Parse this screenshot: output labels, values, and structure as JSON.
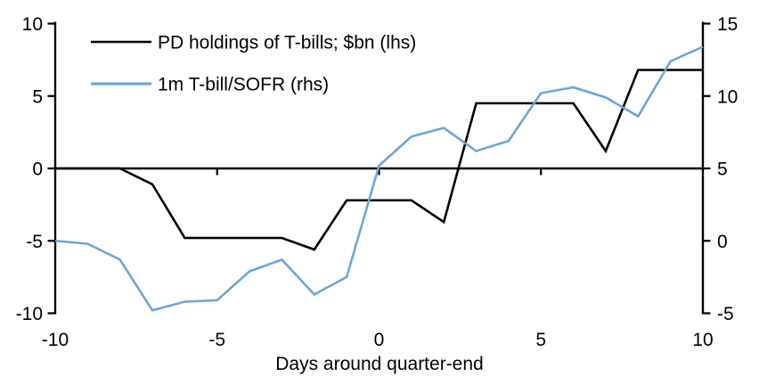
{
  "chart_data": {
    "type": "line",
    "title": "",
    "xlabel": "Days around quarter-end",
    "grid": false,
    "legend_position": "top-left",
    "x_axis": {
      "min": -10,
      "max": 10,
      "tick_values": [
        -10,
        -5,
        0,
        5,
        10
      ]
    },
    "left_axis": {
      "min": -10,
      "max": 10,
      "tick_values": [
        10,
        5,
        0,
        -5,
        -10
      ]
    },
    "right_axis": {
      "min": -5,
      "max": 15,
      "tick_values": [
        15,
        10,
        5,
        0,
        -5
      ]
    },
    "x": [
      -10,
      -9,
      -8,
      -7,
      -6,
      -5,
      -4,
      -3,
      -2,
      -1,
      0,
      1,
      2,
      3,
      4,
      5,
      6,
      7,
      8,
      9,
      10
    ],
    "series": [
      {
        "name": "PD holdings of T-bills; $bn (lhs)",
        "axis": "left",
        "color": "#000000",
        "values": [
          0,
          0,
          0,
          -1.1,
          -4.8,
          -4.8,
          -4.8,
          -4.8,
          -5.6,
          -2.2,
          -2.2,
          -2.2,
          -3.7,
          4.5,
          4.5,
          4.5,
          4.5,
          1.2,
          6.8,
          6.8,
          6.8
        ]
      },
      {
        "name": "1m T-bill/SOFR (rhs)",
        "axis": "right",
        "color": "#6EA4DB",
        "values": [
          0.0,
          -0.2,
          -1.3,
          -4.8,
          -4.2,
          -4.1,
          -2.1,
          -1.3,
          -3.7,
          -2.5,
          5.2,
          7.2,
          7.8,
          6.2,
          6.9,
          10.2,
          10.6,
          9.9,
          8.6,
          12.4,
          13.4
        ]
      }
    ]
  },
  "colors": {
    "background": "#ffffff",
    "axis": "#000000"
  }
}
